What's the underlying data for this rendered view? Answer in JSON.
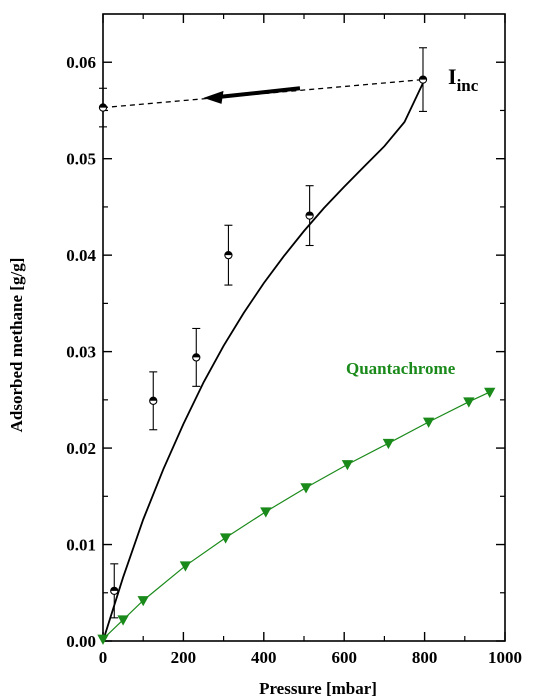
{
  "chart_data": {
    "type": "scatter",
    "xlabel": "Pressure [mbar]",
    "ylabel": "Adsorbed methane [g/g]",
    "xlim": [
      0,
      1000
    ],
    "ylim": [
      0,
      0.065
    ],
    "xticks": [
      "0",
      "200",
      "400",
      "600",
      "800",
      "1000"
    ],
    "yticks": [
      "0.00",
      "0.01",
      "0.02",
      "0.03",
      "0.04",
      "0.05",
      "0.06"
    ],
    "grid": false,
    "series": [
      {
        "kind": "points-with-error",
        "marker": "half-filled-circle",
        "color": "#000000",
        "points": [
          {
            "x": 0,
            "y": 0.0553,
            "err": 0.002
          },
          {
            "x": 28,
            "y": 0.0052,
            "err": 0.0028
          },
          {
            "x": 125,
            "y": 0.0249,
            "err": 0.003
          },
          {
            "x": 232,
            "y": 0.0294,
            "err": 0.003
          },
          {
            "x": 312,
            "y": 0.04,
            "err": 0.0031
          },
          {
            "x": 514,
            "y": 0.0441,
            "err": 0.0031
          },
          {
            "x": 796,
            "y": 0.0582,
            "err": 0.0033
          }
        ]
      },
      {
        "kind": "fit-curve",
        "color": "#000000",
        "x": [
          0,
          50,
          100,
          150,
          200,
          250,
          300,
          350,
          400,
          450,
          500,
          550,
          600,
          650,
          700,
          750,
          800
        ],
        "y": [
          0,
          0.0066,
          0.0126,
          0.0178,
          0.0225,
          0.0268,
          0.0306,
          0.034,
          0.0371,
          0.0399,
          0.0425,
          0.0449,
          0.0471,
          0.0492,
          0.0513,
          0.0538,
          0.0582
        ]
      },
      {
        "kind": "dashed-line",
        "color": "#000000",
        "x": [
          0,
          796
        ],
        "y": [
          0.0553,
          0.0582
        ]
      },
      {
        "name": "Quantachrome",
        "kind": "line-markers",
        "marker": "down-triangle",
        "color": "#1a8a1a",
        "x": [
          0,
          50,
          100,
          205,
          305,
          405,
          505,
          608,
          710,
          810,
          910,
          962
        ],
        "y": [
          0.0002,
          0.0022,
          0.0042,
          0.0078,
          0.0107,
          0.0134,
          0.0159,
          0.0183,
          0.0205,
          0.0227,
          0.0248,
          0.0258
        ]
      }
    ],
    "annotations": [
      {
        "text": "I",
        "subscript": "inc",
        "near": "top-right"
      },
      {
        "text": "Quantachrome",
        "color": "#1a8a1a",
        "near": "right"
      }
    ],
    "arrow": {
      "from": [
        490,
        0.0573
      ],
      "to": [
        250,
        0.0563
      ]
    }
  }
}
